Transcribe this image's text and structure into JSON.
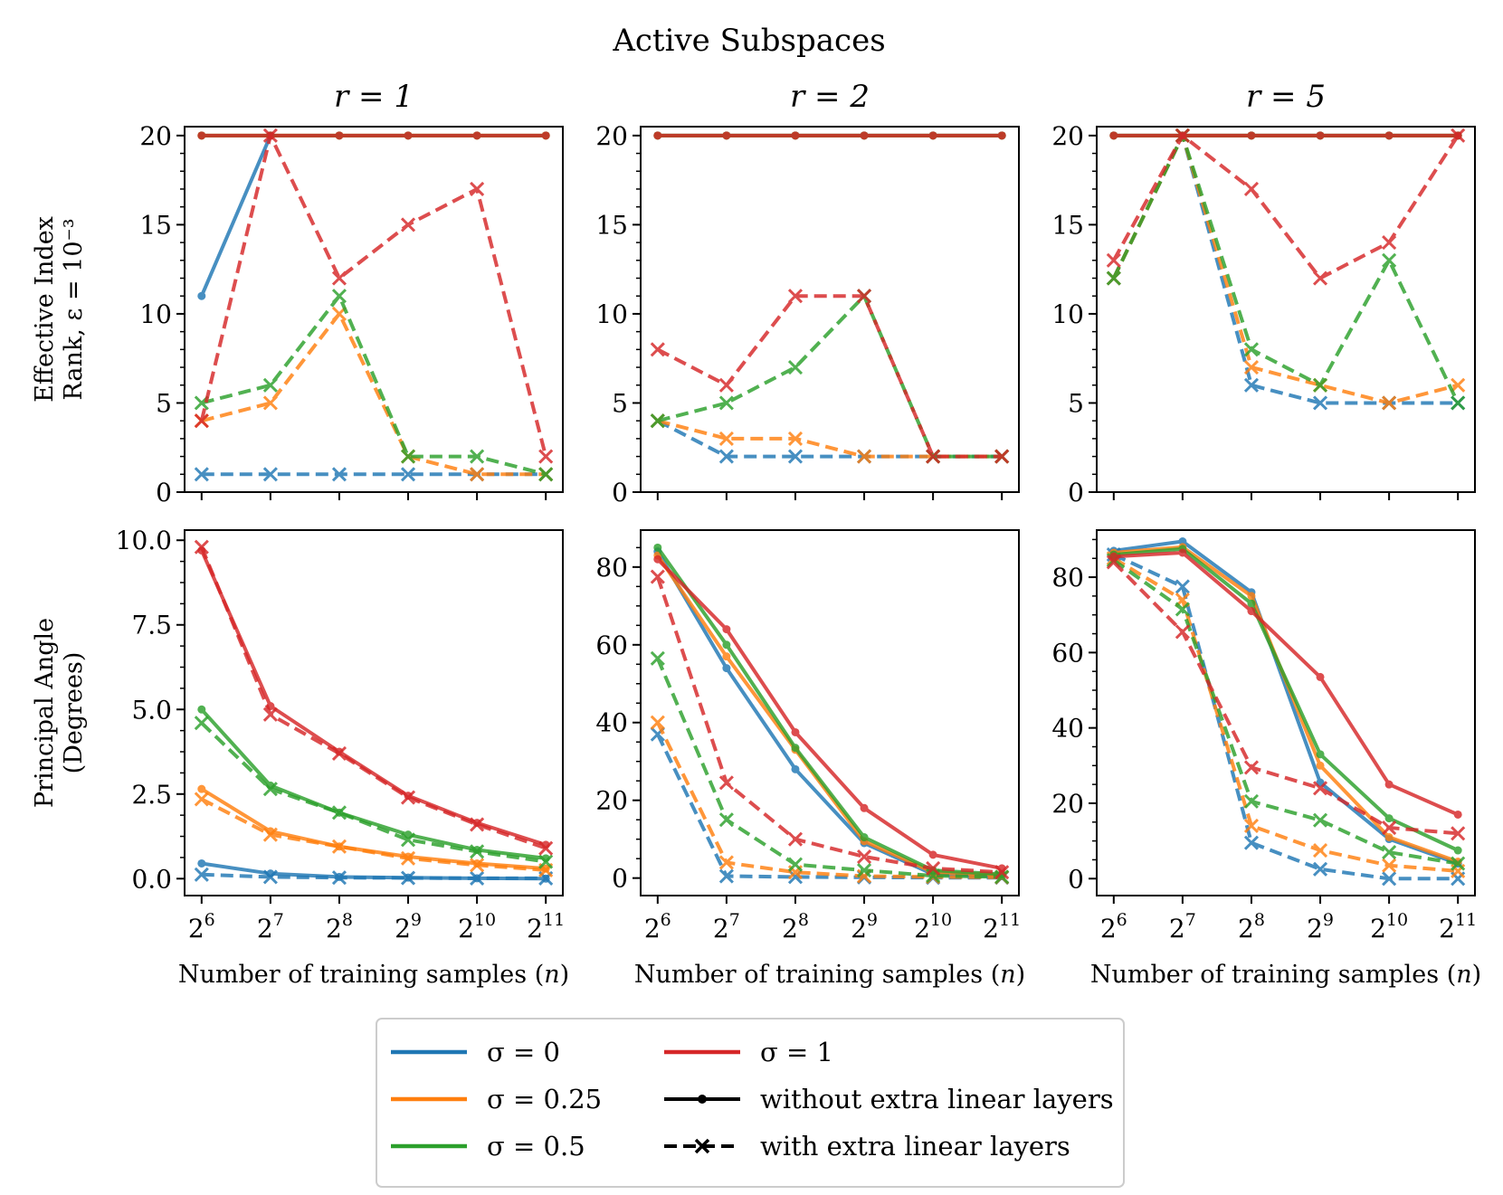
{
  "figure_title": "Active Subspaces",
  "xlabel": "Number of training samples (n)",
  "colors": {
    "sigma_0": "#1f77b4",
    "sigma_0.25": "#ff7f0e",
    "sigma_0.5": "#2ca02c",
    "sigma_1": "#d62728"
  },
  "legend": {
    "entries": [
      {
        "label": "σ = 0",
        "key": "sigma_0"
      },
      {
        "label": "σ = 0.25",
        "key": "sigma_0.25"
      },
      {
        "label": "σ = 0.5",
        "key": "sigma_0.5"
      },
      {
        "label": "σ = 1",
        "key": "sigma_1"
      },
      {
        "label": "without extra linear layers",
        "key": "solid"
      },
      {
        "label": "with extra linear layers",
        "key": "dashed"
      }
    ]
  },
  "chart_data": [
    {
      "type": "line",
      "row": 0,
      "col": 0,
      "title": "r = 1",
      "ylabel": [
        "Effective Index",
        "Rank, ε = 10⁻³"
      ],
      "x": [
        "2^6",
        "2^7",
        "2^8",
        "2^9",
        "2^10",
        "2^11"
      ],
      "ylim": [
        0,
        20.5
      ],
      "yticks": [
        "0",
        "5",
        "10",
        "15",
        "20"
      ],
      "ytick_values": [
        0,
        5,
        10,
        15,
        20
      ],
      "series": [
        {
          "key": "sigma_0",
          "style": "solid",
          "values": [
            11,
            20,
            null,
            null,
            null,
            null
          ]
        },
        {
          "key": "sigma_0",
          "style": "dashed",
          "values": [
            1,
            1,
            1,
            1,
            1,
            1
          ]
        },
        {
          "key": "sigma_0.25",
          "style": "solid",
          "values": [
            20,
            20,
            20,
            20,
            20,
            20
          ]
        },
        {
          "key": "sigma_0.25",
          "style": "dashed",
          "values": [
            4,
            5,
            10,
            2,
            1,
            1
          ]
        },
        {
          "key": "sigma_0.5",
          "style": "solid",
          "values": [
            20,
            20,
            20,
            20,
            20,
            20
          ]
        },
        {
          "key": "sigma_0.5",
          "style": "dashed",
          "values": [
            5,
            6,
            11,
            2,
            2,
            1
          ]
        },
        {
          "key": "sigma_1",
          "style": "solid",
          "values": [
            20,
            20,
            20,
            20,
            20,
            20
          ]
        },
        {
          "key": "sigma_1",
          "style": "dashed",
          "values": [
            4,
            20,
            12,
            15,
            17,
            2
          ]
        }
      ]
    },
    {
      "type": "line",
      "row": 0,
      "col": 1,
      "title": "r = 2",
      "x": [
        "2^6",
        "2^7",
        "2^8",
        "2^9",
        "2^10",
        "2^11"
      ],
      "ylim": [
        0,
        20.5
      ],
      "yticks": [
        "0",
        "5",
        "10",
        "15",
        "20"
      ],
      "ytick_values": [
        0,
        5,
        10,
        15,
        20
      ],
      "series": [
        {
          "key": "sigma_0",
          "style": "solid",
          "values": [
            20,
            20,
            20,
            20,
            20,
            20
          ]
        },
        {
          "key": "sigma_0",
          "style": "dashed",
          "values": [
            4,
            2,
            2,
            2,
            2,
            2
          ]
        },
        {
          "key": "sigma_0.25",
          "style": "solid",
          "values": [
            20,
            20,
            20,
            20,
            20,
            20
          ]
        },
        {
          "key": "sigma_0.25",
          "style": "dashed",
          "values": [
            4,
            3,
            3,
            2,
            2,
            2
          ]
        },
        {
          "key": "sigma_0.5",
          "style": "solid",
          "values": [
            20,
            20,
            20,
            20,
            20,
            20
          ]
        },
        {
          "key": "sigma_0.5",
          "style": "dashed",
          "values": [
            4,
            5,
            7,
            11,
            2,
            2
          ]
        },
        {
          "key": "sigma_1",
          "style": "solid",
          "values": [
            20,
            20,
            20,
            20,
            20,
            20
          ]
        },
        {
          "key": "sigma_1",
          "style": "dashed",
          "values": [
            8,
            6,
            11,
            11,
            2,
            2
          ]
        }
      ]
    },
    {
      "type": "line",
      "row": 0,
      "col": 2,
      "title": "r = 5",
      "x": [
        "2^6",
        "2^7",
        "2^8",
        "2^9",
        "2^10",
        "2^11"
      ],
      "ylim": [
        0,
        20.5
      ],
      "yticks": [
        "0",
        "5",
        "10",
        "15",
        "20"
      ],
      "ytick_values": [
        0,
        5,
        10,
        15,
        20
      ],
      "series": [
        {
          "key": "sigma_0",
          "style": "solid",
          "values": [
            20,
            20,
            20,
            20,
            20,
            20
          ]
        },
        {
          "key": "sigma_0",
          "style": "dashed",
          "values": [
            12,
            20,
            6,
            5,
            5,
            5
          ]
        },
        {
          "key": "sigma_0.25",
          "style": "solid",
          "values": [
            20,
            20,
            20,
            20,
            20,
            20
          ]
        },
        {
          "key": "sigma_0.25",
          "style": "dashed",
          "values": [
            12,
            20,
            7,
            6,
            5,
            6
          ]
        },
        {
          "key": "sigma_0.5",
          "style": "solid",
          "values": [
            20,
            20,
            20,
            20,
            20,
            20
          ]
        },
        {
          "key": "sigma_0.5",
          "style": "dashed",
          "values": [
            12,
            20,
            8,
            6,
            13,
            5
          ]
        },
        {
          "key": "sigma_1",
          "style": "solid",
          "values": [
            20,
            20,
            20,
            20,
            20,
            20
          ]
        },
        {
          "key": "sigma_1",
          "style": "dashed",
          "values": [
            13,
            20,
            17,
            12,
            14,
            20
          ]
        }
      ]
    },
    {
      "type": "line",
      "row": 1,
      "col": 0,
      "ylabel": [
        "Principal Angle",
        "(Degrees)"
      ],
      "x": [
        "2^6",
        "2^7",
        "2^8",
        "2^9",
        "2^10",
        "2^11"
      ],
      "ylim": [
        -0.5,
        10.3
      ],
      "yticks": [
        "0.0",
        "2.5",
        "5.0",
        "7.5",
        "10.0"
      ],
      "ytick_values": [
        0,
        2.5,
        5,
        7.5,
        10
      ],
      "series": [
        {
          "key": "sigma_0",
          "style": "solid",
          "values": [
            0.45,
            0.15,
            0.05,
            0.03,
            0.01,
            0.0
          ]
        },
        {
          "key": "sigma_0",
          "style": "dashed",
          "values": [
            0.12,
            0.05,
            0.03,
            0.02,
            0.01,
            0.01
          ]
        },
        {
          "key": "sigma_0.25",
          "style": "solid",
          "values": [
            2.65,
            1.4,
            0.95,
            0.65,
            0.45,
            0.3
          ]
        },
        {
          "key": "sigma_0.25",
          "style": "dashed",
          "values": [
            2.35,
            1.3,
            0.95,
            0.6,
            0.4,
            0.25
          ]
        },
        {
          "key": "sigma_0.5",
          "style": "solid",
          "values": [
            5.0,
            2.75,
            1.95,
            1.3,
            0.85,
            0.6
          ]
        },
        {
          "key": "sigma_0.5",
          "style": "dashed",
          "values": [
            4.6,
            2.65,
            1.95,
            1.15,
            0.8,
            0.5
          ]
        },
        {
          "key": "sigma_1",
          "style": "solid",
          "values": [
            9.7,
            5.1,
            3.75,
            2.45,
            1.65,
            1.0
          ]
        },
        {
          "key": "sigma_1",
          "style": "dashed",
          "values": [
            9.8,
            4.85,
            3.7,
            2.4,
            1.6,
            0.9
          ]
        }
      ]
    },
    {
      "type": "line",
      "row": 1,
      "col": 1,
      "x": [
        "2^6",
        "2^7",
        "2^8",
        "2^9",
        "2^10",
        "2^11"
      ],
      "ylim": [
        -4.5,
        89.5
      ],
      "yticks": [
        "0",
        "20",
        "40",
        "60",
        "80"
      ],
      "ytick_values": [
        0,
        20,
        40,
        60,
        80
      ],
      "series": [
        {
          "key": "sigma_0",
          "style": "solid",
          "values": [
            84,
            54,
            28,
            9,
            1,
            0.5
          ]
        },
        {
          "key": "sigma_0",
          "style": "dashed",
          "values": [
            37,
            0.5,
            0.3,
            0.2,
            0.1,
            0.1
          ]
        },
        {
          "key": "sigma_0.25",
          "style": "solid",
          "values": [
            83,
            57,
            33,
            9.5,
            1.5,
            0.8
          ]
        },
        {
          "key": "sigma_0.25",
          "style": "dashed",
          "values": [
            40,
            4,
            1.5,
            0.5,
            0.3,
            0.2
          ]
        },
        {
          "key": "sigma_0.5",
          "style": "solid",
          "values": [
            85,
            60,
            33.5,
            10.5,
            2,
            1
          ]
        },
        {
          "key": "sigma_0.5",
          "style": "dashed",
          "values": [
            56.5,
            15,
            3.5,
            2,
            0.6,
            0.3
          ]
        },
        {
          "key": "sigma_1",
          "style": "solid",
          "values": [
            82,
            64,
            37.5,
            18,
            6,
            2.5
          ]
        },
        {
          "key": "sigma_1",
          "style": "dashed",
          "values": [
            77.5,
            24.5,
            10,
            5.5,
            2.5,
            1.5
          ]
        }
      ]
    },
    {
      "type": "line",
      "row": 1,
      "col": 2,
      "x": [
        "2^6",
        "2^7",
        "2^8",
        "2^9",
        "2^10",
        "2^11"
      ],
      "ylim": [
        -4.5,
        92.5
      ],
      "yticks": [
        "0",
        "20",
        "40",
        "60",
        "80"
      ],
      "ytick_values": [
        0,
        20,
        40,
        60,
        80
      ],
      "series": [
        {
          "key": "sigma_0",
          "style": "solid",
          "values": [
            87,
            89.5,
            76,
            25.5,
            10.5,
            4
          ]
        },
        {
          "key": "sigma_0",
          "style": "dashed",
          "values": [
            86,
            77.5,
            9.5,
            2.5,
            0,
            0
          ]
        },
        {
          "key": "sigma_0.25",
          "style": "solid",
          "values": [
            86.5,
            88,
            75,
            30,
            11,
            4.5
          ]
        },
        {
          "key": "sigma_0.25",
          "style": "dashed",
          "values": [
            85,
            74,
            14,
            7.5,
            3.5,
            2
          ]
        },
        {
          "key": "sigma_0.5",
          "style": "solid",
          "values": [
            86,
            87.5,
            73,
            33,
            16,
            7.5
          ]
        },
        {
          "key": "sigma_0.5",
          "style": "dashed",
          "values": [
            84.5,
            71.5,
            20.5,
            15.5,
            7,
            4
          ]
        },
        {
          "key": "sigma_1",
          "style": "solid",
          "values": [
            85.5,
            86.5,
            71,
            53.5,
            25,
            17
          ]
        },
        {
          "key": "sigma_1",
          "style": "dashed",
          "values": [
            84,
            65.5,
            29.5,
            24,
            13.5,
            12
          ]
        }
      ]
    }
  ]
}
